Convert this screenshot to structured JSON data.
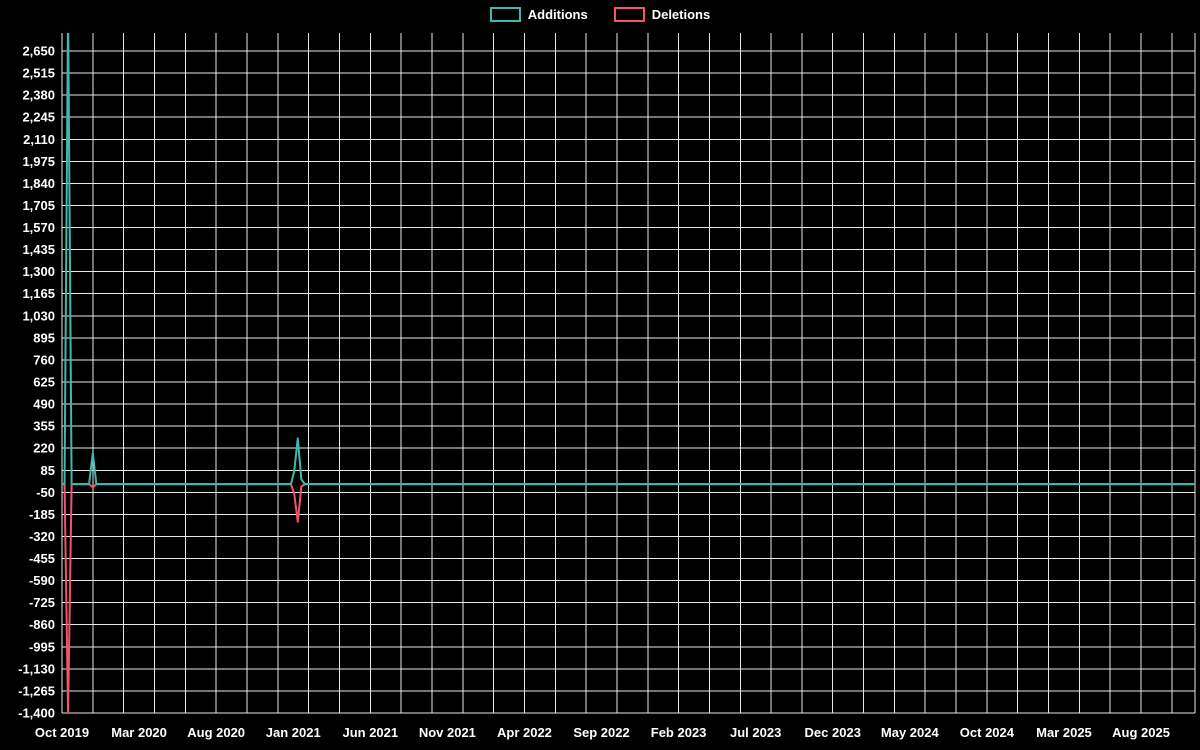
{
  "colors": {
    "background": "#000000",
    "grid": "#e8e8e8",
    "axis_text": "#ffffff",
    "additions": "#3fb8af",
    "deletions": "#f2546b"
  },
  "legend": {
    "items": [
      {
        "label": "Additions",
        "color": "#3fb8af"
      },
      {
        "label": "Deletions",
        "color": "#f2546b"
      }
    ]
  },
  "chart_data": {
    "type": "line",
    "title": "",
    "xlabel": "",
    "ylabel": "",
    "legend_position": "top-center",
    "grid": true,
    "x_axis": {
      "labels": [
        "Oct 2019",
        "Mar 2020",
        "Aug 2020",
        "Jan 2021",
        "Jun 2021",
        "Nov 2021",
        "Apr 2022",
        "Sep 2022",
        "Feb 2023",
        "Jul 2023",
        "Dec 2023",
        "May 2024",
        "Oct 2024",
        "Mar 2025",
        "Aug 2025"
      ],
      "label_months": [
        0,
        5,
        10,
        15,
        20,
        25,
        30,
        35,
        40,
        45,
        50,
        55,
        60,
        65,
        70
      ],
      "domain_months": [
        0,
        73.5
      ],
      "gridline_step_months": 2
    },
    "y_axis": {
      "min": -1400,
      "max": 2760,
      "tick_min": -1400,
      "tick_max": 2650,
      "tick_step": 135,
      "tick_labels": [
        "-1,400",
        "-1,265",
        "-1,130",
        "-995",
        "-860",
        "-725",
        "-590",
        "-455",
        "-320",
        "-185",
        "-50",
        "85",
        "220",
        "355",
        "490",
        "625",
        "760",
        "895",
        "1,030",
        "1,165",
        "1,300",
        "1,435",
        "1,570",
        "1,705",
        "1,840",
        "1,975",
        "2,110",
        "2,245",
        "2,380",
        "2,515",
        "2,650"
      ]
    },
    "series": [
      {
        "name": "Additions",
        "color": "#3fb8af",
        "baseline": 0,
        "points": [
          [
            "2019-10-01",
            0
          ],
          [
            "2019-10-06",
            0
          ],
          [
            "2019-10-13",
            2900
          ],
          [
            "2019-10-20",
            0
          ],
          [
            "2019-11-24",
            0
          ],
          [
            "2019-12-01",
            190
          ],
          [
            "2019-12-08",
            0
          ],
          [
            "2020-12-27",
            0
          ],
          [
            "2021-01-03",
            80
          ],
          [
            "2021-01-10",
            280
          ],
          [
            "2021-01-17",
            30
          ],
          [
            "2021-01-24",
            0
          ],
          [
            "2025-11-16",
            0
          ]
        ]
      },
      {
        "name": "Deletions",
        "color": "#f2546b",
        "baseline": 0,
        "points": [
          [
            "2019-10-01",
            0
          ],
          [
            "2019-10-06",
            0
          ],
          [
            "2019-10-13",
            -1400
          ],
          [
            "2019-10-20",
            0
          ],
          [
            "2019-11-24",
            0
          ],
          [
            "2019-12-01",
            -20
          ],
          [
            "2019-12-08",
            0
          ],
          [
            "2020-12-27",
            0
          ],
          [
            "2021-01-03",
            -60
          ],
          [
            "2021-01-10",
            -230
          ],
          [
            "2021-01-17",
            -15
          ],
          [
            "2021-01-24",
            0
          ],
          [
            "2025-11-16",
            0
          ]
        ]
      }
    ]
  }
}
